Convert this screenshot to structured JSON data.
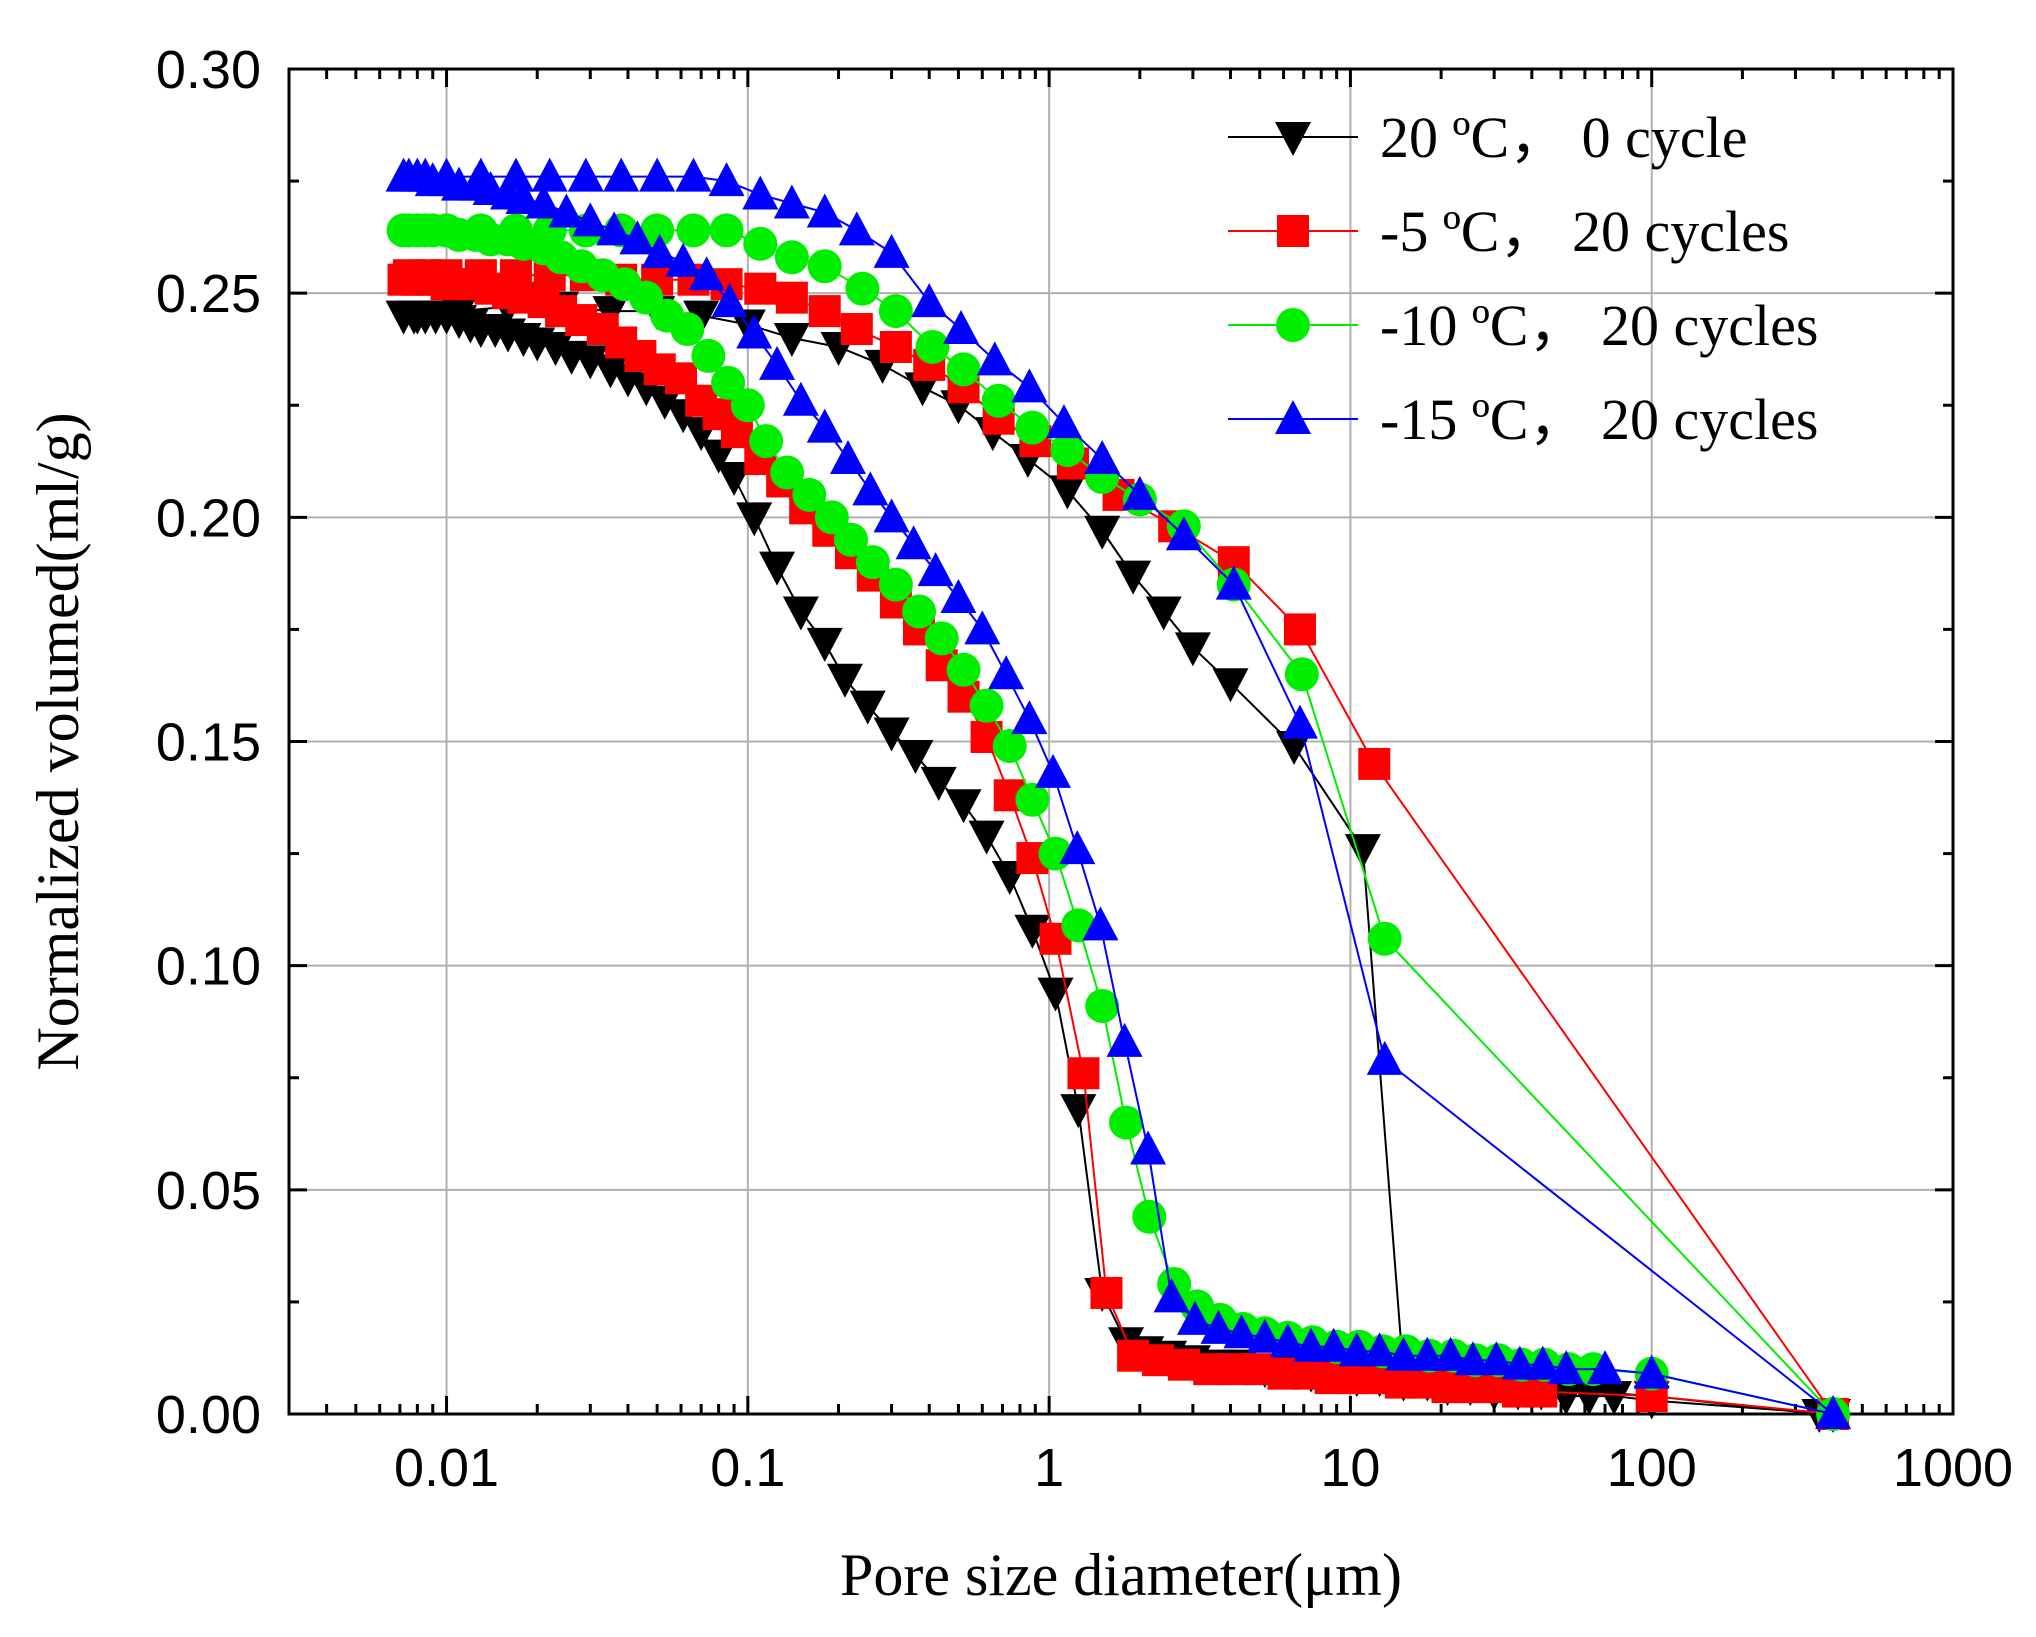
{
  "chart_data": {
    "type": "line",
    "title": "",
    "xlabel": "Pore size diameter(μm)",
    "ylabel": "Normalized volumed(ml/g)",
    "xscale": "log",
    "xlim": [
      0.003,
      1000
    ],
    "ylim": [
      0.0,
      0.3
    ],
    "xticks": [
      0.01,
      0.1,
      1,
      10,
      100,
      1000
    ],
    "xtick_labels": [
      "0.01",
      "0.1",
      "1",
      "10",
      "100",
      "1000"
    ],
    "yticks": [
      0.0,
      0.05,
      0.1,
      0.15,
      0.2,
      0.25,
      0.3
    ],
    "ytick_labels": [
      "0.00",
      "0.05",
      "0.10",
      "0.15",
      "0.20",
      "0.25",
      "0.30"
    ],
    "grid": true,
    "legend_position": "top-right",
    "series": [
      {
        "name": "20 ºC， 0 cycle",
        "color": "#000000",
        "marker": "triangle-down",
        "x": [
          0.0072,
          0.0078,
          0.0085,
          0.0092,
          0.01,
          0.011,
          0.012,
          0.013,
          0.0145,
          0.016,
          0.018,
          0.02,
          0.023,
          0.026,
          0.03,
          0.035,
          0.04,
          0.046,
          0.053,
          0.061,
          0.07,
          0.08,
          0.09,
          0.105,
          0.125,
          0.15,
          0.18,
          0.21,
          0.25,
          0.3,
          0.36,
          0.43,
          0.52,
          0.62,
          0.74,
          0.88,
          1.05,
          1.25,
          1.5,
          1.8,
          2.1,
          2.5,
          3.0,
          3.6,
          4.3,
          5.2,
          6.2,
          7.4,
          8.8,
          10.5,
          12.5,
          15.0,
          18.0,
          21.0,
          25.0,
          30.0,
          36.0,
          43.0,
          52.0,
          62.0,
          75.0,
          100.0,
          400.0,
          360.0,
          100.0,
          40.0,
          26.0,
          20.0,
          15.0,
          11.0,
          6.5,
          4.0,
          3.0,
          2.4,
          1.9,
          1.5,
          1.15,
          0.85,
          0.65,
          0.5,
          0.38,
          0.28,
          0.2,
          0.14,
          0.1,
          0.07,
          0.05,
          0.035,
          0.024,
          0.016,
          0.011,
          0.008
        ],
        "y": [
          0.245,
          0.245,
          0.245,
          0.245,
          0.245,
          0.244,
          0.243,
          0.242,
          0.242,
          0.241,
          0.24,
          0.239,
          0.238,
          0.236,
          0.235,
          0.233,
          0.231,
          0.229,
          0.226,
          0.223,
          0.219,
          0.214,
          0.209,
          0.2,
          0.189,
          0.179,
          0.172,
          0.164,
          0.158,
          0.152,
          0.147,
          0.141,
          0.136,
          0.129,
          0.12,
          0.108,
          0.094,
          0.068,
          0.027,
          0.016,
          0.014,
          0.013,
          0.012,
          0.011,
          0.011,
          0.01,
          0.01,
          0.009,
          0.009,
          0.008,
          0.008,
          0.007,
          0.007,
          0.006,
          0.006,
          0.005,
          0.005,
          0.005,
          0.004,
          0.004,
          0.004,
          0.003,
          0.0,
          0.0,
          0.004,
          0.006,
          0.007,
          0.008,
          0.009,
          0.126,
          0.149,
          0.163,
          0.171,
          0.179,
          0.187,
          0.197,
          0.206,
          0.213,
          0.219,
          0.225,
          0.229,
          0.234,
          0.238,
          0.24,
          0.243,
          0.245,
          0.246,
          0.246,
          0.247,
          0.247,
          0.246,
          0.245
        ],
        "x_note": "desorption branch returns along upper curve"
      },
      {
        "name": "-5 ºC， 20 cycles",
        "color": "#ff0000",
        "marker": "square",
        "x": [
          0.0072,
          0.008,
          0.009,
          0.01,
          0.011,
          0.012,
          0.014,
          0.016,
          0.018,
          0.021,
          0.024,
          0.028,
          0.033,
          0.038,
          0.044,
          0.051,
          0.06,
          0.07,
          0.08,
          0.092,
          0.11,
          0.13,
          0.155,
          0.185,
          0.22,
          0.26,
          0.31,
          0.37,
          0.44,
          0.52,
          0.62,
          0.74,
          0.88,
          1.05,
          1.3,
          1.55,
          1.9,
          2.3,
          2.8,
          3.4,
          4.1,
          5.0,
          6.0,
          7.2,
          8.6,
          10.3,
          12.3,
          14.7,
          17.6,
          21.0,
          25.0,
          30.0,
          36.0,
          43.0,
          100.0,
          400.0,
          12.0,
          6.8,
          4.1,
          2.6,
          1.7,
          1.2,
          0.9,
          0.68,
          0.52,
          0.4,
          0.31,
          0.23,
          0.18,
          0.14,
          0.11,
          0.085,
          0.066,
          0.05,
          0.038,
          0.029,
          0.022,
          0.017,
          0.013,
          0.01,
          0.0085,
          0.0075
        ],
        "y": [
          0.253,
          0.253,
          0.253,
          0.252,
          0.252,
          0.252,
          0.251,
          0.25,
          0.249,
          0.248,
          0.246,
          0.244,
          0.242,
          0.239,
          0.236,
          0.233,
          0.231,
          0.226,
          0.223,
          0.219,
          0.213,
          0.208,
          0.202,
          0.197,
          0.192,
          0.187,
          0.181,
          0.175,
          0.167,
          0.16,
          0.151,
          0.138,
          0.124,
          0.106,
          0.076,
          0.027,
          0.013,
          0.012,
          0.011,
          0.01,
          0.01,
          0.01,
          0.009,
          0.009,
          0.008,
          0.008,
          0.008,
          0.007,
          0.007,
          0.006,
          0.006,
          0.006,
          0.005,
          0.005,
          0.004,
          0.0,
          0.145,
          0.175,
          0.19,
          0.198,
          0.205,
          0.212,
          0.217,
          0.222,
          0.229,
          0.234,
          0.238,
          0.242,
          0.246,
          0.249,
          0.251,
          0.252,
          0.253,
          0.253,
          0.253,
          0.254,
          0.254,
          0.254,
          0.254,
          0.254,
          0.254,
          0.254
        ]
      },
      {
        "name": "-10 ºC， 20 cycles",
        "color": "#00ee00",
        "marker": "circle",
        "x": [
          0.0072,
          0.008,
          0.009,
          0.01,
          0.011,
          0.0125,
          0.014,
          0.016,
          0.018,
          0.021,
          0.024,
          0.028,
          0.033,
          0.039,
          0.046,
          0.054,
          0.063,
          0.074,
          0.086,
          0.1,
          0.115,
          0.135,
          0.16,
          0.19,
          0.22,
          0.26,
          0.31,
          0.37,
          0.44,
          0.52,
          0.62,
          0.74,
          0.88,
          1.05,
          1.25,
          1.5,
          1.8,
          2.15,
          2.6,
          3.1,
          3.7,
          4.4,
          5.2,
          6.2,
          7.5,
          9.0,
          10.7,
          12.8,
          15.3,
          18.3,
          22.0,
          26.0,
          31.0,
          37.0,
          44.0,
          53.0,
          64.0,
          100.0,
          400.0,
          13.0,
          6.9,
          4.1,
          2.8,
          2.0,
          1.5,
          1.15,
          0.88,
          0.68,
          0.52,
          0.41,
          0.31,
          0.24,
          0.18,
          0.14,
          0.11,
          0.085,
          0.066,
          0.05,
          0.038,
          0.029,
          0.022,
          0.017,
          0.013,
          0.01,
          0.0085,
          0.0075
        ],
        "y": [
          0.264,
          0.264,
          0.264,
          0.264,
          0.263,
          0.263,
          0.262,
          0.262,
          0.261,
          0.26,
          0.258,
          0.256,
          0.254,
          0.252,
          0.249,
          0.245,
          0.242,
          0.236,
          0.23,
          0.225,
          0.217,
          0.21,
          0.205,
          0.2,
          0.195,
          0.19,
          0.185,
          0.179,
          0.173,
          0.166,
          0.158,
          0.149,
          0.137,
          0.125,
          0.109,
          0.091,
          0.065,
          0.044,
          0.029,
          0.024,
          0.021,
          0.019,
          0.018,
          0.017,
          0.016,
          0.015,
          0.015,
          0.014,
          0.014,
          0.013,
          0.013,
          0.012,
          0.012,
          0.011,
          0.011,
          0.01,
          0.01,
          0.009,
          0.0,
          0.106,
          0.165,
          0.185,
          0.198,
          0.204,
          0.209,
          0.215,
          0.22,
          0.226,
          0.233,
          0.238,
          0.246,
          0.251,
          0.256,
          0.258,
          0.261,
          0.264,
          0.264,
          0.264,
          0.264,
          0.264,
          0.264,
          0.264,
          0.264,
          0.264,
          0.264,
          0.264
        ]
      },
      {
        "name": "-15 ºC， 20 cycles",
        "color": "#0000ff",
        "marker": "triangle-up",
        "x": [
          0.0072,
          0.008,
          0.009,
          0.01,
          0.011,
          0.0125,
          0.014,
          0.016,
          0.018,
          0.021,
          0.025,
          0.03,
          0.036,
          0.043,
          0.051,
          0.061,
          0.073,
          0.087,
          0.105,
          0.125,
          0.15,
          0.18,
          0.215,
          0.255,
          0.3,
          0.355,
          0.42,
          0.5,
          0.6,
          0.72,
          0.86,
          1.03,
          1.24,
          1.48,
          1.78,
          2.13,
          2.55,
          3.05,
          3.65,
          4.35,
          5.2,
          6.2,
          7.4,
          8.8,
          10.5,
          12.5,
          15.0,
          18.0,
          21.5,
          25.5,
          30.5,
          36.5,
          43.5,
          52.0,
          70.0,
          100.0,
          400.0,
          13.0,
          6.8,
          4.1,
          2.8,
          2.0,
          1.5,
          1.12,
          0.86,
          0.66,
          0.51,
          0.4,
          0.3,
          0.23,
          0.18,
          0.14,
          0.11,
          0.085,
          0.066,
          0.05,
          0.038,
          0.029,
          0.022,
          0.017,
          0.013,
          0.01,
          0.0085,
          0.0075
        ],
        "y": [
          0.276,
          0.276,
          0.275,
          0.275,
          0.274,
          0.274,
          0.273,
          0.272,
          0.271,
          0.27,
          0.268,
          0.266,
          0.264,
          0.262,
          0.259,
          0.257,
          0.254,
          0.248,
          0.241,
          0.234,
          0.226,
          0.22,
          0.213,
          0.206,
          0.2,
          0.194,
          0.188,
          0.182,
          0.175,
          0.165,
          0.155,
          0.143,
          0.126,
          0.109,
          0.083,
          0.059,
          0.026,
          0.021,
          0.019,
          0.018,
          0.017,
          0.016,
          0.015,
          0.015,
          0.014,
          0.014,
          0.013,
          0.013,
          0.013,
          0.012,
          0.012,
          0.011,
          0.011,
          0.01,
          0.01,
          0.009,
          0.0,
          0.079,
          0.154,
          0.185,
          0.196,
          0.205,
          0.213,
          0.221,
          0.229,
          0.235,
          0.242,
          0.248,
          0.259,
          0.264,
          0.268,
          0.27,
          0.272,
          0.275,
          0.276,
          0.276,
          0.276,
          0.276,
          0.276,
          0.276,
          0.276,
          0.276,
          0.276,
          0.276
        ]
      }
    ]
  }
}
